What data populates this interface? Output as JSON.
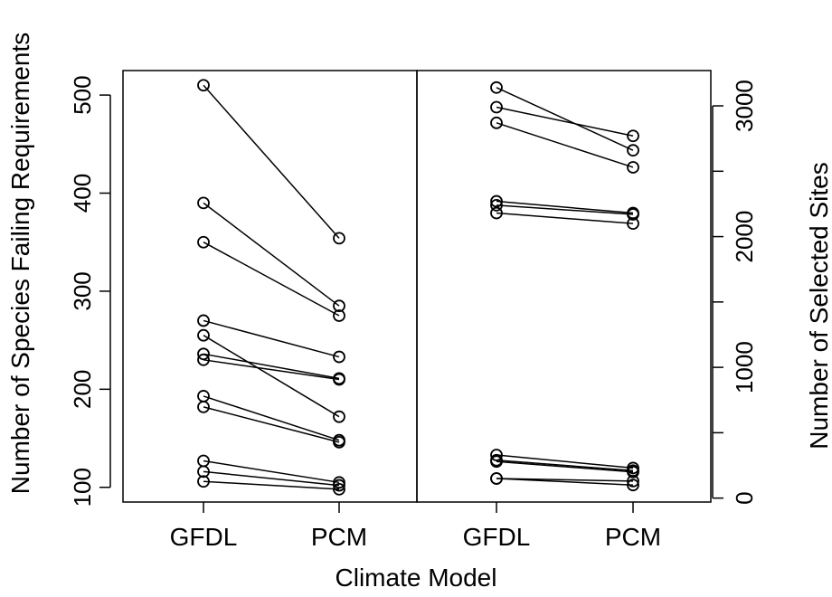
{
  "chart_data": {
    "type": "line",
    "xlabel": "Climate Model",
    "grid": false,
    "panels": [
      {
        "name": "species",
        "categories": [
          "GFDL",
          "PCM"
        ],
        "ylabel": "Number of Species Failing Requirements",
        "y_axis_side": "left",
        "yticks": [
          100,
          200,
          300,
          400,
          500
        ],
        "ylim": [
          85,
          525
        ],
        "series": [
          {
            "values": [
              510,
              354
            ]
          },
          {
            "values": [
              390,
              285
            ]
          },
          {
            "values": [
              350,
              275
            ]
          },
          {
            "values": [
              270,
              233
            ]
          },
          {
            "values": [
              255,
              172
            ]
          },
          {
            "values": [
              236,
              211
            ]
          },
          {
            "values": [
              230,
              210
            ]
          },
          {
            "values": [
              193,
              148
            ]
          },
          {
            "values": [
              182,
              146
            ]
          },
          {
            "values": [
              127,
              105
            ]
          },
          {
            "values": [
              116,
              102
            ]
          },
          {
            "values": [
              106,
              98
            ]
          }
        ]
      },
      {
        "name": "sites",
        "categories": [
          "GFDL",
          "PCM"
        ],
        "ylabel": "Number of Selected Sites",
        "y_axis_side": "right",
        "yticks": [
          0,
          1000,
          2000,
          3000
        ],
        "minor_yticks": [
          500,
          1500,
          2500
        ],
        "ylim": [
          -30,
          3270
        ],
        "series": [
          {
            "values": [
              3140,
              2660
            ]
          },
          {
            "values": [
              2990,
              2770
            ]
          },
          {
            "values": [
              2870,
              2530
            ]
          },
          {
            "values": [
              2270,
              2180
            ]
          },
          {
            "values": [
              2240,
              2170
            ]
          },
          {
            "values": [
              2180,
              2100
            ]
          },
          {
            "values": [
              330,
              230
            ]
          },
          {
            "values": [
              290,
              210
            ]
          },
          {
            "values": [
              280,
              200
            ]
          },
          {
            "values": [
              150,
              130
            ]
          },
          {
            "values": [
              150,
              100
            ]
          }
        ]
      }
    ]
  }
}
